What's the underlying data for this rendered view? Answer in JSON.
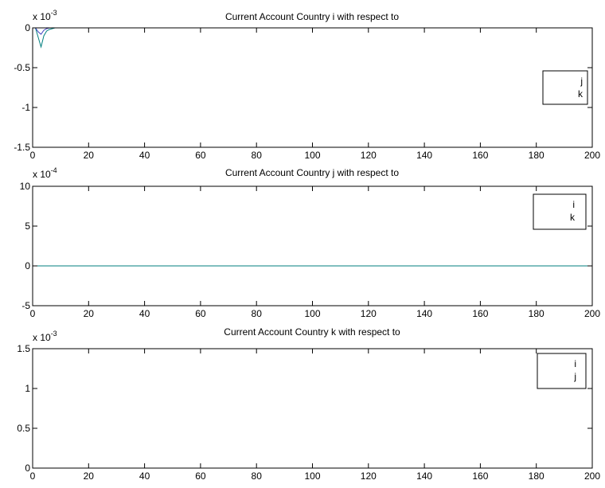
{
  "chart_data": [
    {
      "type": "line",
      "title": "Current Account Country i with respect to",
      "exponent_label": "x 10",
      "exponent": "-3",
      "xlim": [
        0,
        200
      ],
      "ylim": [
        -1.5,
        0
      ],
      "xticks": [
        "0",
        "20",
        "40",
        "60",
        "80",
        "100",
        "120",
        "140",
        "160",
        "180",
        "200"
      ],
      "yticks": [
        "0",
        "-0.5",
        "-1",
        "-1.5"
      ],
      "ytick_values": [
        0,
        -0.5,
        -1,
        -1.5
      ],
      "legend": [
        "j",
        "k"
      ],
      "legend_position": "right",
      "series": [
        {
          "color": "#007f7f",
          "x": [
            1,
            2,
            3,
            4,
            5,
            6,
            7,
            8,
            9,
            10,
            20,
            50,
            100,
            150,
            200
          ],
          "y": [
            0,
            -0.00012,
            -0.00024,
            -0.0001,
            -4e-05,
            -2e-05,
            -1e-05,
            0,
            0,
            0,
            0,
            0,
            0,
            0,
            0
          ]
        },
        {
          "color": "#3f3fbf",
          "x": [
            1,
            2,
            3,
            4,
            5,
            6,
            7,
            8,
            9,
            10,
            20,
            50,
            100,
            150,
            200
          ],
          "y": [
            0,
            -5e-05,
            -8e-05,
            -3e-05,
            -1e-05,
            0,
            0,
            0,
            0,
            0,
            0,
            0,
            0,
            0,
            0
          ]
        }
      ]
    },
    {
      "type": "line",
      "title": "Current Account Country j with respect to",
      "exponent_label": "x 10",
      "exponent": "-4",
      "xlim": [
        0,
        200
      ],
      "ylim": [
        -5,
        10
      ],
      "xticks": [
        "0",
        "20",
        "40",
        "60",
        "80",
        "100",
        "120",
        "140",
        "160",
        "180",
        "200"
      ],
      "yticks": [
        "10",
        "5",
        "0",
        "-5"
      ],
      "ytick_values": [
        10,
        5,
        0,
        -5
      ],
      "legend": [
        "i",
        "k"
      ],
      "legend_position": "top-right",
      "series": [
        {
          "color": "#3f3fbf",
          "x": [
            1,
            2,
            3,
            4,
            5,
            10,
            50,
            100,
            150,
            200
          ],
          "y": [
            0,
            0,
            0,
            0,
            0,
            0,
            0,
            0,
            0,
            0
          ]
        },
        {
          "color": "#007f7f",
          "x": [
            1,
            2,
            3,
            4,
            5,
            10,
            50,
            100,
            150,
            200
          ],
          "y": [
            0,
            0,
            0,
            0,
            0,
            0,
            0,
            0,
            0,
            0
          ]
        }
      ]
    },
    {
      "type": "line",
      "title": "Current Account Country k with respect to",
      "exponent_label": "x 10",
      "exponent": "-3",
      "xlim": [
        0,
        200
      ],
      "ylim": [
        0,
        1.5
      ],
      "xticks": [
        "0",
        "20",
        "40",
        "60",
        "80",
        "100",
        "120",
        "140",
        "160",
        "180",
        "200"
      ],
      "yticks": [
        "1.5",
        "1",
        "0.5",
        "0"
      ],
      "ytick_values": [
        1.5,
        1,
        0.5,
        0
      ],
      "legend": [
        "i",
        "j"
      ],
      "legend_position": "top-right",
      "series": [
        {
          "color": "#3f3fbf",
          "x": [
            1,
            2,
            3,
            4,
            5,
            10,
            50,
            100,
            150,
            200
          ],
          "y": [
            0,
            0,
            0,
            0,
            0,
            0,
            0,
            0,
            0,
            0
          ]
        },
        {
          "color": "#007f7f",
          "x": [
            1,
            2,
            3,
            4,
            5,
            10,
            50,
            100,
            150,
            200
          ],
          "y": [
            0,
            0,
            0,
            0,
            0,
            0,
            0,
            0,
            0,
            0
          ]
        }
      ]
    }
  ]
}
